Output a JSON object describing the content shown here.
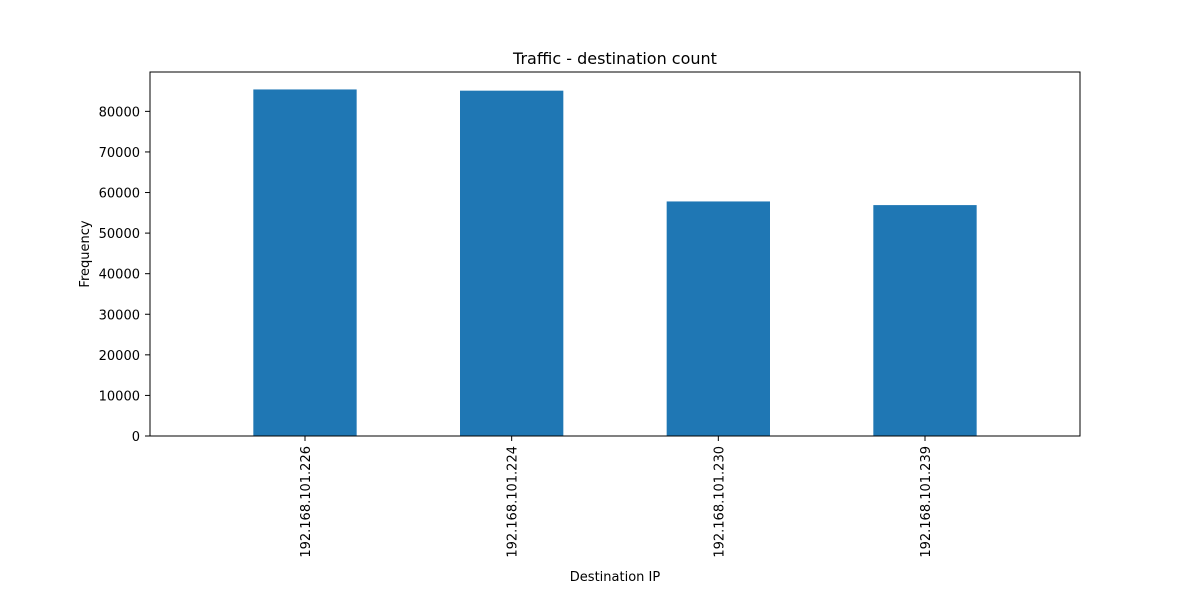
{
  "chart_data": {
    "type": "bar",
    "title": "Traffic - destination count",
    "xlabel": "Destination IP",
    "ylabel": "Frequency",
    "categories": [
      "192.168.101.226",
      "192.168.101.224",
      "192.168.101.230",
      "192.168.101.239"
    ],
    "values": [
      85400,
      85100,
      57800,
      56900
    ],
    "ylim": [
      0,
      89700
    ],
    "yticks": [
      0,
      10000,
      20000,
      30000,
      40000,
      50000,
      60000,
      70000,
      80000
    ],
    "grid": false,
    "bar_color": "#1f77b4"
  }
}
